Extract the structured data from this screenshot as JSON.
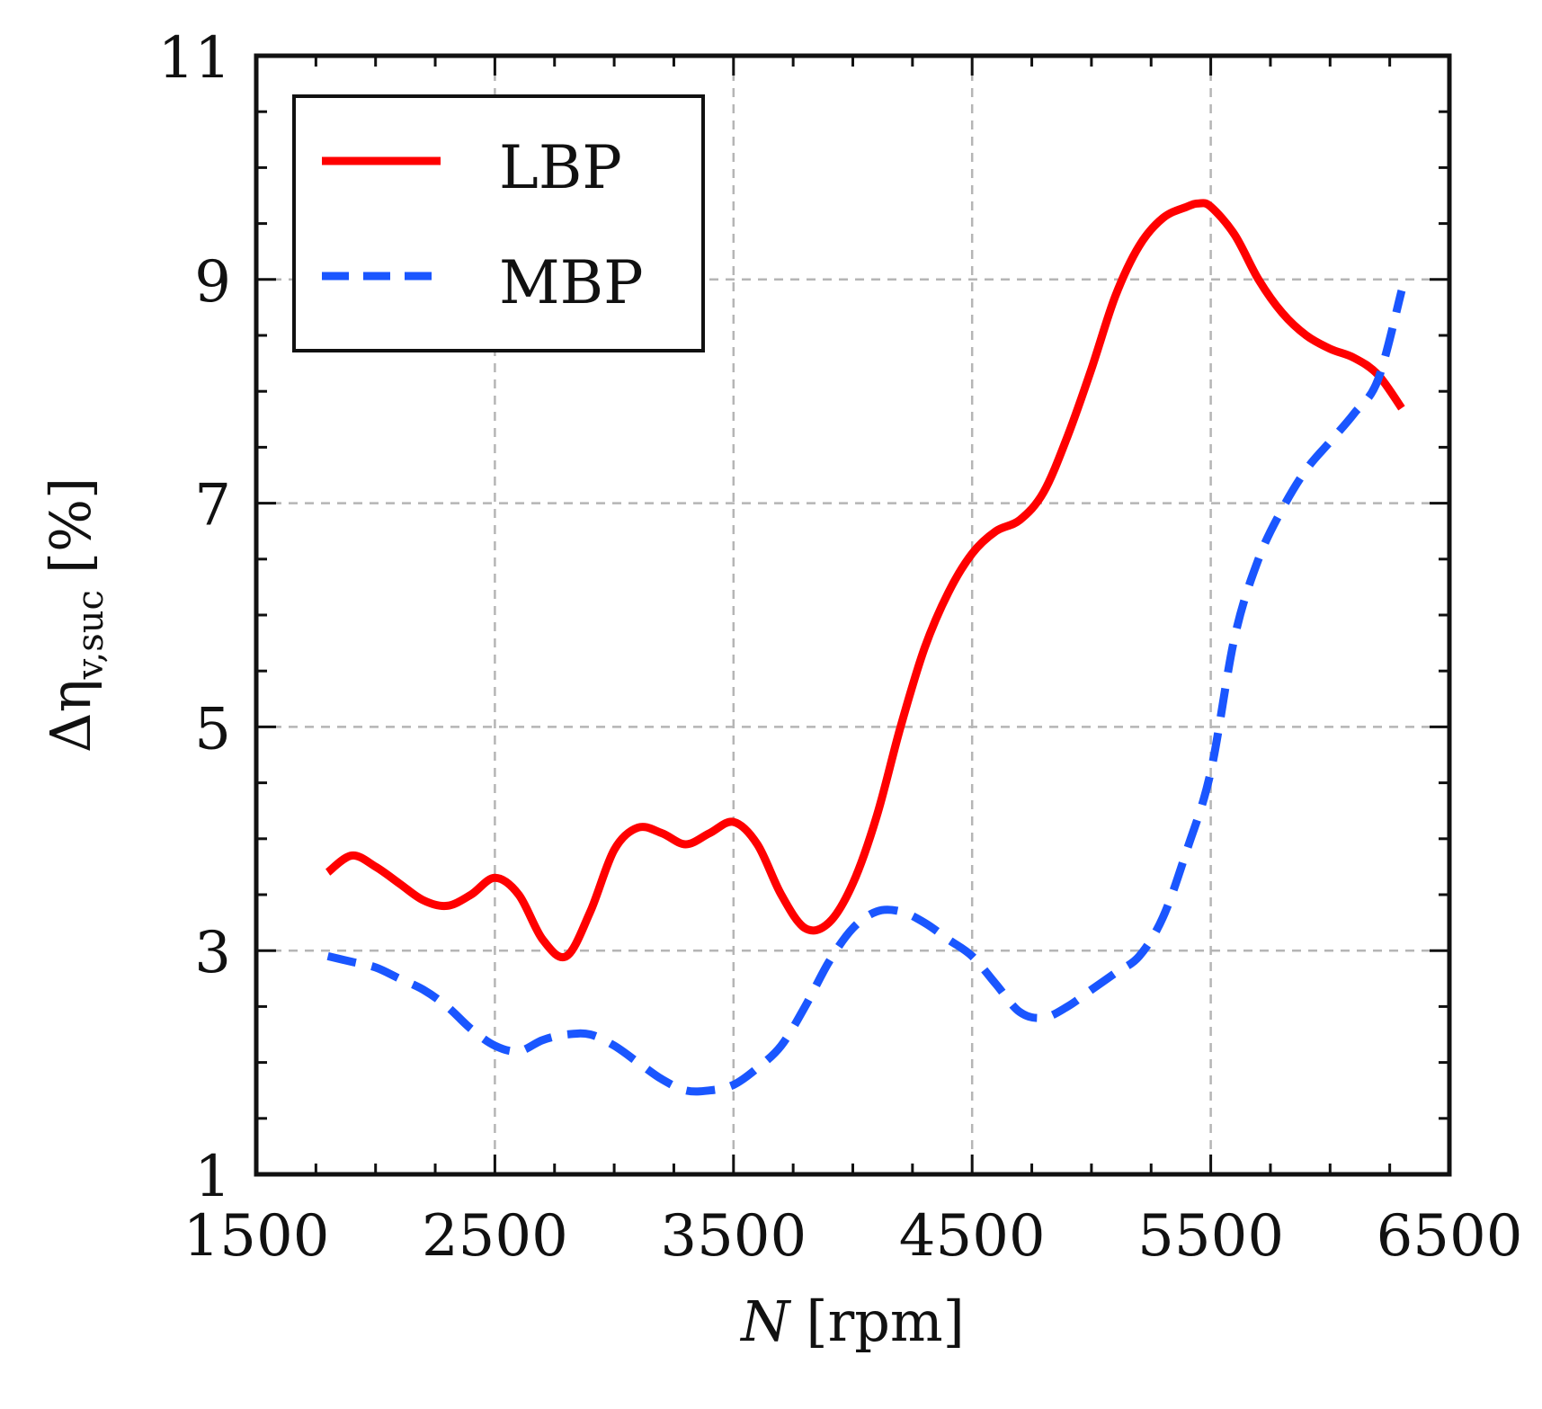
{
  "chart_data": {
    "type": "line",
    "title": "",
    "xlabel": "N",
    "xlabel_unit": "[rpm]",
    "ylabel_symbol": "Δη",
    "ylabel_subscript": "v,suc",
    "ylabel_unit": "[%]",
    "xlim": [
      1500,
      6500
    ],
    "ylim": [
      1,
      11
    ],
    "xticks": [
      1500,
      2500,
      3500,
      4500,
      5500,
      6500
    ],
    "yticks": [
      1,
      3,
      5,
      7,
      9,
      11
    ],
    "grid": true,
    "legend_position": "top-left",
    "series": [
      {
        "name": "LBP",
        "color": "#ff0000",
        "style": "solid",
        "x": [
          1800,
          1900,
          2000,
          2100,
          2200,
          2300,
          2400,
          2500,
          2600,
          2700,
          2800,
          2900,
          3000,
          3100,
          3200,
          3300,
          3400,
          3500,
          3600,
          3700,
          3800,
          3900,
          4000,
          4100,
          4200,
          4300,
          4400,
          4500,
          4600,
          4700,
          4800,
          4900,
          5000,
          5100,
          5200,
          5300,
          5400,
          5450,
          5500,
          5600,
          5700,
          5800,
          5900,
          6000,
          6100,
          6200,
          6300
        ],
        "y": [
          3.7,
          3.85,
          3.75,
          3.6,
          3.45,
          3.4,
          3.5,
          3.65,
          3.5,
          3.1,
          2.95,
          3.35,
          3.9,
          4.1,
          4.05,
          3.95,
          4.05,
          4.15,
          3.95,
          3.5,
          3.2,
          3.25,
          3.6,
          4.2,
          5.0,
          5.7,
          6.2,
          6.55,
          6.75,
          6.85,
          7.1,
          7.6,
          8.2,
          8.85,
          9.3,
          9.55,
          9.65,
          9.68,
          9.65,
          9.4,
          9.0,
          8.7,
          8.5,
          8.38,
          8.3,
          8.15,
          7.85
        ]
      },
      {
        "name": "MBP",
        "color": "#1a56ff",
        "style": "dashed",
        "x": [
          1800,
          1900,
          2000,
          2100,
          2200,
          2300,
          2400,
          2500,
          2600,
          2700,
          2800,
          2900,
          3000,
          3100,
          3200,
          3300,
          3400,
          3500,
          3600,
          3700,
          3800,
          3900,
          4000,
          4100,
          4200,
          4300,
          4400,
          4500,
          4600,
          4700,
          4800,
          4900,
          5000,
          5100,
          5200,
          5300,
          5400,
          5500,
          5600,
          5700,
          5800,
          5900,
          6000,
          6100,
          6200,
          6300
        ],
        "y": [
          2.95,
          2.9,
          2.85,
          2.75,
          2.65,
          2.5,
          2.3,
          2.15,
          2.1,
          2.2,
          2.25,
          2.25,
          2.15,
          2.0,
          1.85,
          1.75,
          1.75,
          1.8,
          1.95,
          2.15,
          2.5,
          2.9,
          3.2,
          3.35,
          3.35,
          3.25,
          3.1,
          2.95,
          2.7,
          2.45,
          2.4,
          2.5,
          2.65,
          2.8,
          2.95,
          3.3,
          3.9,
          4.6,
          5.8,
          6.5,
          6.95,
          7.3,
          7.55,
          7.8,
          8.1,
          8.9
        ]
      }
    ]
  }
}
